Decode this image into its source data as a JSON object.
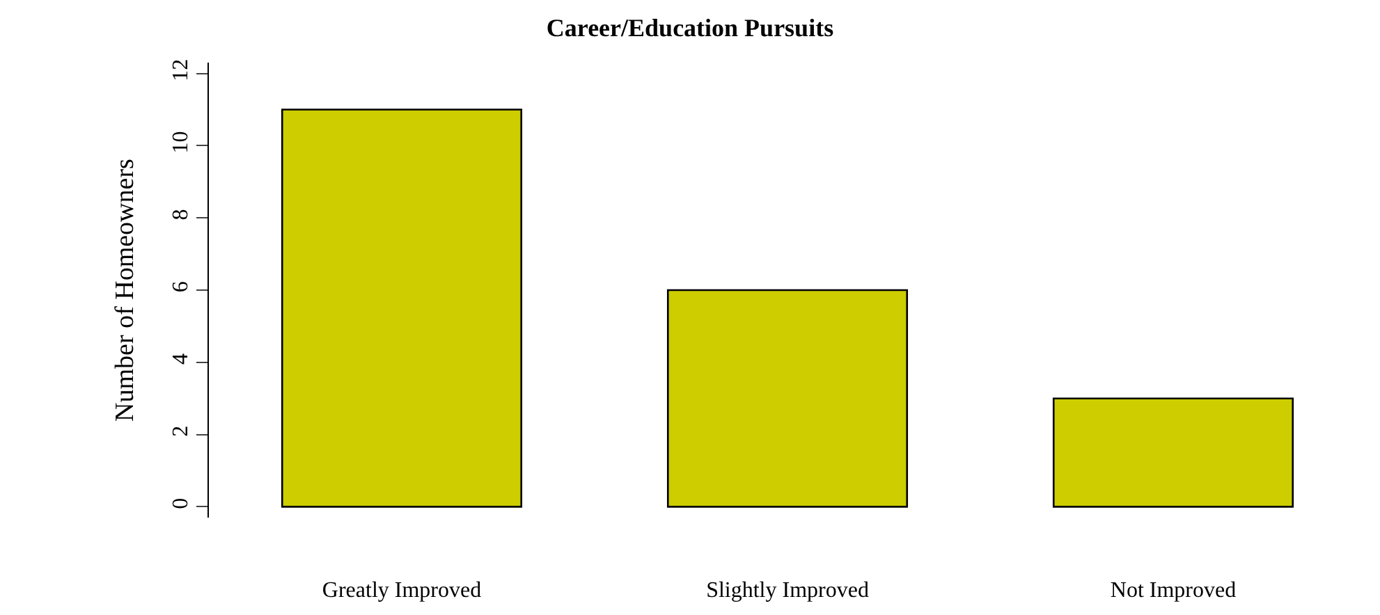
{
  "chart_data": {
    "type": "bar",
    "title": "Career/Education Pursuits",
    "ylabel": "Number of Homeowners",
    "categories": [
      "Greatly Improved",
      "Slightly Improved",
      "Not Improved"
    ],
    "values": [
      11,
      6,
      3
    ],
    "color": "#cdcd00",
    "ylim": [
      -0.3,
      12.3
    ],
    "yticks": [
      0,
      2,
      4,
      6,
      8,
      10,
      12
    ]
  }
}
